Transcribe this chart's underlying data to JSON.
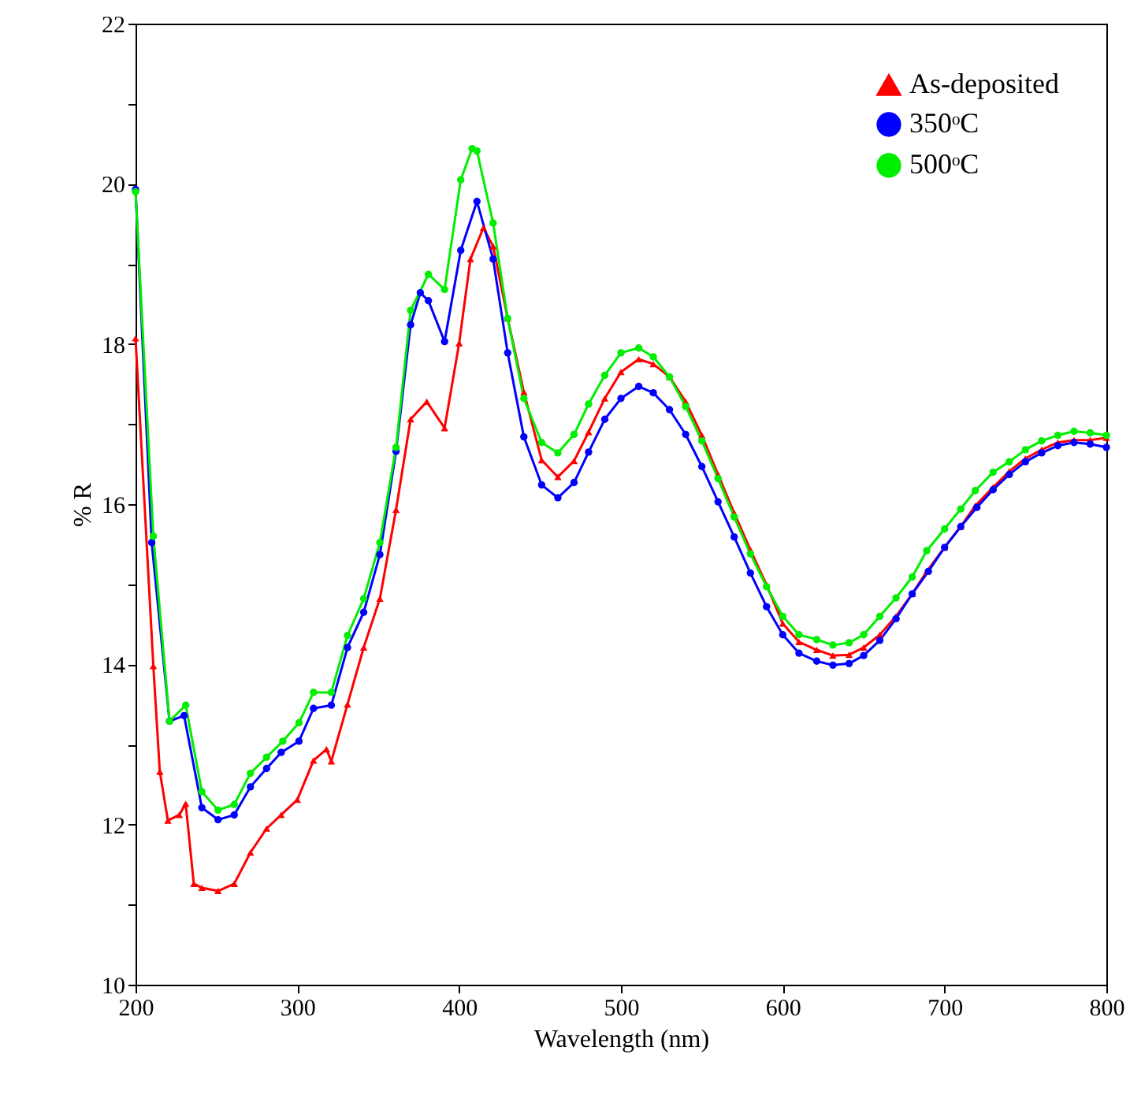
{
  "chart_data": {
    "type": "line",
    "xlabel": "Wavelength (nm)",
    "ylabel": "% R",
    "xlim": [
      200,
      800
    ],
    "xticks": [
      200,
      300,
      400,
      500,
      600,
      700,
      800
    ],
    "ylim": [
      10,
      22
    ],
    "yticks": [
      10,
      {
        "value": 11,
        "label": null
      },
      12,
      {
        "value": 13,
        "label": null
      },
      14,
      {
        "value": 15,
        "label": null
      },
      16,
      {
        "value": 17,
        "label": null
      },
      18,
      {
        "value": 19,
        "label": null
      },
      20,
      {
        "value": 21,
        "label": null
      },
      22
    ],
    "legend": "top right",
    "line_style": "solid",
    "series": [
      {
        "name": "As-deposited",
        "color": "#ff0000",
        "marker": "triangle",
        "x": [
          200,
          211,
          215,
          220,
          227,
          231,
          236,
          241,
          251,
          261,
          271,
          281,
          290,
          300,
          310,
          318,
          321,
          331,
          341,
          351,
          361,
          370,
          380,
          391,
          400,
          407,
          415,
          421,
          430,
          440,
          451,
          461,
          471,
          480,
          490,
          500,
          511,
          520,
          530,
          540,
          550,
          560,
          570,
          580,
          590,
          600,
          610,
          621,
          631,
          641,
          650,
          660,
          670,
          680,
          689,
          700,
          710,
          719,
          730,
          740,
          750,
          760,
          770,
          780,
          790,
          800
        ],
        "values": [
          18.07,
          13.98,
          12.66,
          12.05,
          12.12,
          12.26,
          11.26,
          11.21,
          11.17,
          11.26,
          11.65,
          11.95,
          12.12,
          12.31,
          12.8,
          12.94,
          12.79,
          13.5,
          14.21,
          14.82,
          15.93,
          17.06,
          17.28,
          16.95,
          18.01,
          19.06,
          19.45,
          19.22,
          18.32,
          17.4,
          16.55,
          16.34,
          16.54,
          16.9,
          17.32,
          17.65,
          17.81,
          17.75,
          17.59,
          17.28,
          16.86,
          16.37,
          15.89,
          15.43,
          14.99,
          14.51,
          14.28,
          14.18,
          14.11,
          14.12,
          14.21,
          14.37,
          14.6,
          14.88,
          15.16,
          15.46,
          15.72,
          15.98,
          16.21,
          16.41,
          16.57,
          16.68,
          16.77,
          16.8,
          16.8,
          16.83
        ]
      },
      {
        "name": "350ᵒC",
        "color": "#0000ff",
        "marker": "circle",
        "x": [
          200,
          210,
          221,
          230,
          241,
          251,
          261,
          271,
          281,
          290,
          301,
          310,
          321,
          331,
          341,
          351,
          361,
          370,
          376,
          381,
          391,
          401,
          411,
          421,
          430,
          440,
          451,
          461,
          471,
          480,
          490,
          500,
          511,
          520,
          530,
          540,
          550,
          560,
          570,
          580,
          590,
          600,
          610,
          621,
          631,
          641,
          650,
          660,
          670,
          680,
          690,
          700,
          710,
          720,
          730,
          740,
          750,
          760,
          770,
          780,
          790,
          800
        ],
        "values": [
          19.93,
          15.52,
          13.29,
          13.36,
          12.21,
          12.06,
          12.12,
          12.47,
          12.7,
          12.9,
          13.04,
          13.45,
          13.49,
          14.21,
          14.65,
          15.37,
          16.66,
          18.24,
          18.64,
          18.54,
          18.03,
          19.17,
          19.78,
          19.06,
          17.89,
          16.84,
          16.24,
          16.08,
          16.27,
          16.65,
          17.06,
          17.32,
          17.47,
          17.39,
          17.18,
          16.87,
          16.47,
          16.03,
          15.59,
          15.14,
          14.72,
          14.37,
          14.14,
          14.04,
          13.99,
          14.01,
          14.11,
          14.3,
          14.57,
          14.88,
          15.16,
          15.46,
          15.72,
          15.96,
          16.18,
          16.37,
          16.53,
          16.64,
          16.73,
          16.77,
          16.75,
          16.71
        ]
      },
      {
        "name": "500ᵒC",
        "color": "#00ee00",
        "marker": "circle",
        "x": [
          200,
          211,
          221,
          231,
          241,
          251,
          261,
          271,
          281,
          291,
          301,
          310,
          321,
          331,
          341,
          351,
          361,
          370,
          381,
          391,
          401,
          408,
          411,
          421,
          430,
          440,
          451,
          461,
          471,
          480,
          490,
          500,
          511,
          520,
          530,
          540,
          550,
          560,
          570,
          580,
          590,
          600,
          610,
          621,
          631,
          641,
          650,
          660,
          670,
          680,
          689,
          700,
          710,
          719,
          730,
          740,
          750,
          760,
          770,
          780,
          790,
          800
        ],
        "values": [
          19.9,
          15.6,
          13.29,
          13.49,
          12.41,
          12.18,
          12.25,
          12.64,
          12.84,
          13.04,
          13.27,
          13.65,
          13.65,
          14.36,
          14.82,
          15.52,
          16.71,
          18.42,
          18.87,
          18.68,
          20.05,
          20.44,
          20.41,
          19.51,
          18.32,
          17.32,
          16.77,
          16.64,
          16.87,
          17.25,
          17.61,
          17.89,
          17.95,
          17.84,
          17.59,
          17.22,
          16.79,
          16.32,
          15.84,
          15.38,
          14.97,
          14.6,
          14.37,
          14.31,
          14.24,
          14.27,
          14.37,
          14.6,
          14.83,
          15.09,
          15.42,
          15.69,
          15.94,
          16.17,
          16.4,
          16.53,
          16.68,
          16.79,
          16.86,
          16.91,
          16.89,
          16.86
        ]
      }
    ]
  }
}
